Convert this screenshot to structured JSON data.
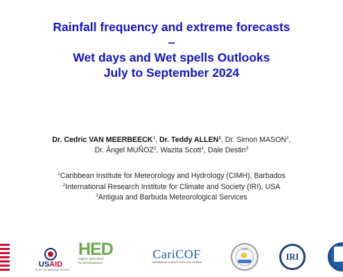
{
  "title": {
    "line1": "Rainfall frequency and extreme forecasts",
    "line2": "–",
    "line3": "Wet days and Wet spells Outlooks",
    "line4": "July to September 2024"
  },
  "authors": [
    {
      "name": "Dr. Cedric VAN MEERBEECK",
      "sup": "1",
      "bold": true
    },
    {
      "name": "Dr. Teddy ALLEN",
      "sup": "1",
      "bold": true
    },
    {
      "name": "Dr. Simon MASON",
      "sup": "2",
      "bold": false
    },
    {
      "name": "Dr. Ángel MUÑOZ",
      "sup": "2",
      "bold": false
    },
    {
      "name": "Wazita Scott",
      "sup": "1",
      "bold": false
    },
    {
      "name": "Dale Destin",
      "sup": "3",
      "bold": false
    }
  ],
  "affiliations": [
    {
      "sup": "1",
      "text": "Caribbean Institute for Meteorology and Hydrology (CIMH), Barbados"
    },
    {
      "sup": "2",
      "text": "International Research Institute for Climate and Society (IRI), USA"
    },
    {
      "sup": "3",
      "text": "Antigua and Barbuda Meteorological Services"
    }
  ],
  "logos": {
    "usaid": {
      "word_a": "US",
      "word_b": "AID",
      "tagline": "FROM THE AMERICAN PEOPLE"
    },
    "hed": {
      "word": "HED",
      "tagline_1": "Higher Education",
      "tagline_2": "for Development"
    },
    "caricof": {
      "word": "CariCOF",
      "tagline": "CARIBBEAN CLIMATE OUTLOOK FORUM"
    },
    "cimh": {
      "caption": "CIMH"
    },
    "iri": {
      "word": "IRI"
    }
  },
  "colors": {
    "title": "#1414c8",
    "usaid_blue": "#002a6c",
    "usaid_red": "#c8102e",
    "hed_green": "#6aa84f",
    "caricof_blue": "#1f5c9a",
    "iri_blue": "#1f3f7a"
  }
}
